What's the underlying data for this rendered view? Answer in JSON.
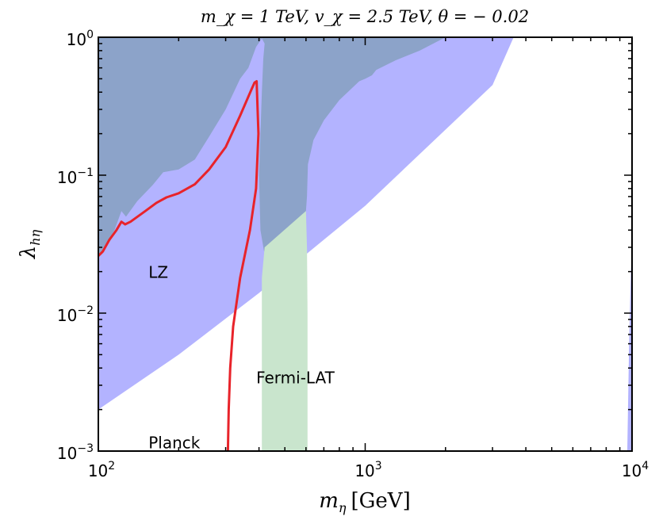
{
  "chart_data": {
    "type": "area",
    "title": "m_χ = 1 TeV,  v_χ = 2.5 TeV,  θ = − 0.02",
    "xlabel_symbol": "m",
    "xlabel_sub": "η",
    "xlabel_unit": "[GeV]",
    "ylabel_symbol": "λ",
    "ylabel_sub": "hη",
    "x_scale": "log",
    "y_scale": "log",
    "xlim": [
      100,
      10000
    ],
    "ylim": [
      0.001,
      1
    ],
    "x_ticks": [
      {
        "value": 100,
        "base": "10",
        "exp": "2"
      },
      {
        "value": 1000,
        "base": "10",
        "exp": "3"
      },
      {
        "value": 10000,
        "base": "10",
        "exp": "4"
      }
    ],
    "y_ticks": [
      {
        "value": 1,
        "base": "10",
        "exp": "0"
      },
      {
        "value": 0.1,
        "base": "10",
        "exp": "−1"
      },
      {
        "value": 0.01,
        "base": "10",
        "exp": "−2"
      },
      {
        "value": 0.001,
        "base": "10",
        "exp": "−3"
      }
    ],
    "annotations": [
      {
        "text": "LZ",
        "x": 150,
        "y": 0.018
      },
      {
        "text": "Fermi-LAT",
        "x": 380,
        "y": 0.0031
      },
      {
        "text": "Planck",
        "x": 150,
        "y": 0.00105
      }
    ],
    "series": [
      {
        "kind": "band",
        "color": "#b3b3ff",
        "lower": [
          [
            100,
            0.002
          ],
          [
            200,
            0.005
          ],
          [
            400,
            0.014
          ],
          [
            1000,
            0.06
          ],
          [
            3000,
            0.45
          ],
          [
            3600,
            1
          ]
        ],
        "upper": [
          [
            100,
            1
          ],
          [
            3600,
            1
          ]
        ]
      },
      {
        "kind": "region",
        "color": "#8ca3c9",
        "polygon": [
          [
            100,
            0.025
          ],
          [
            105,
            0.03
          ],
          [
            115,
            0.04
          ],
          [
            122,
            0.055
          ],
          [
            127,
            0.05
          ],
          [
            140,
            0.065
          ],
          [
            160,
            0.085
          ],
          [
            175,
            0.105
          ],
          [
            200,
            0.11
          ],
          [
            230,
            0.13
          ],
          [
            260,
            0.19
          ],
          [
            300,
            0.3
          ],
          [
            340,
            0.5
          ],
          [
            365,
            0.6
          ],
          [
            390,
            0.85
          ],
          [
            410,
            0.98
          ],
          [
            420,
            0.9
          ],
          [
            415,
            0.7
          ],
          [
            410,
            0.4
          ],
          [
            400,
            0.1
          ],
          [
            405,
            0.04
          ],
          [
            418,
            0.028
          ],
          [
            450,
            0.03
          ],
          [
            500,
            0.037
          ],
          [
            550,
            0.047
          ],
          [
            600,
            0.055
          ],
          [
            605,
            0.07
          ],
          [
            610,
            0.12
          ],
          [
            640,
            0.18
          ],
          [
            700,
            0.25
          ],
          [
            800,
            0.35
          ],
          [
            950,
            0.48
          ],
          [
            1000,
            0.5
          ],
          [
            1060,
            0.53
          ],
          [
            1100,
            0.58
          ],
          [
            1300,
            0.68
          ],
          [
            1600,
            0.8
          ],
          [
            2000,
            1
          ],
          [
            100,
            1
          ]
        ]
      },
      {
        "kind": "region",
        "color": "#c9e5cd",
        "polygon": [
          [
            410,
            0.001
          ],
          [
            410,
            0.018
          ],
          [
            420,
            0.03
          ],
          [
            600,
            0.055
          ],
          [
            605,
            0.03
          ],
          [
            608,
            0.01
          ],
          [
            608,
            0.001
          ]
        ]
      },
      {
        "kind": "region",
        "color": "#b3b3ff",
        "polygon": [
          [
            9600,
            0.001
          ],
          [
            9750,
            0.006
          ],
          [
            9900,
            0.02
          ],
          [
            10000,
            0.03
          ],
          [
            10000,
            0.001
          ]
        ]
      },
      {
        "kind": "line",
        "color": "#e8232a",
        "points": [
          [
            100,
            0.026
          ],
          [
            104,
            0.028
          ],
          [
            110,
            0.034
          ],
          [
            117,
            0.04
          ],
          [
            122,
            0.046
          ],
          [
            126,
            0.044
          ],
          [
            132,
            0.046
          ],
          [
            150,
            0.055
          ],
          [
            165,
            0.063
          ],
          [
            180,
            0.069
          ],
          [
            200,
            0.074
          ],
          [
            230,
            0.086
          ],
          [
            260,
            0.11
          ],
          [
            300,
            0.16
          ],
          [
            340,
            0.27
          ],
          [
            375,
            0.42
          ],
          [
            385,
            0.47
          ],
          [
            392,
            0.48
          ],
          [
            398,
            0.2
          ],
          [
            390,
            0.08
          ],
          [
            370,
            0.04
          ],
          [
            340,
            0.018
          ],
          [
            320,
            0.008
          ],
          [
            312,
            0.004
          ],
          [
            308,
            0.002
          ],
          [
            306,
            0.001
          ]
        ]
      }
    ]
  }
}
